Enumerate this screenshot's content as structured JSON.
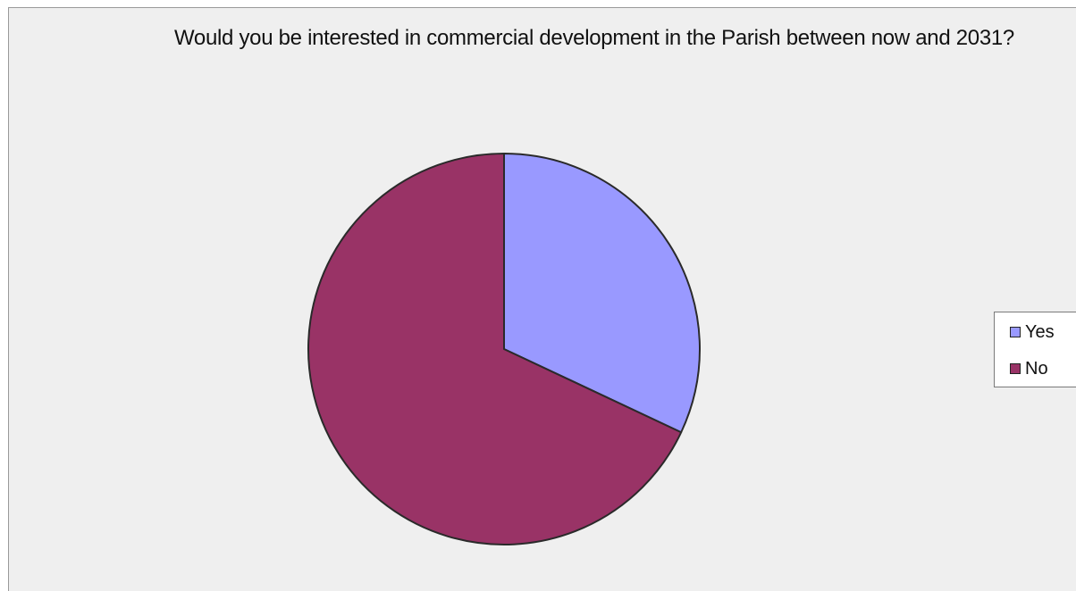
{
  "chart_data": {
    "type": "pie",
    "title": "Would you be interested in commercial development in the Parish between now and 2031?",
    "categories": [
      "Yes",
      "No"
    ],
    "values": [
      32,
      68
    ],
    "colors": [
      "#9999ff",
      "#993366"
    ],
    "legend": {
      "position": "right",
      "entries": [
        "Yes",
        "No"
      ]
    }
  }
}
